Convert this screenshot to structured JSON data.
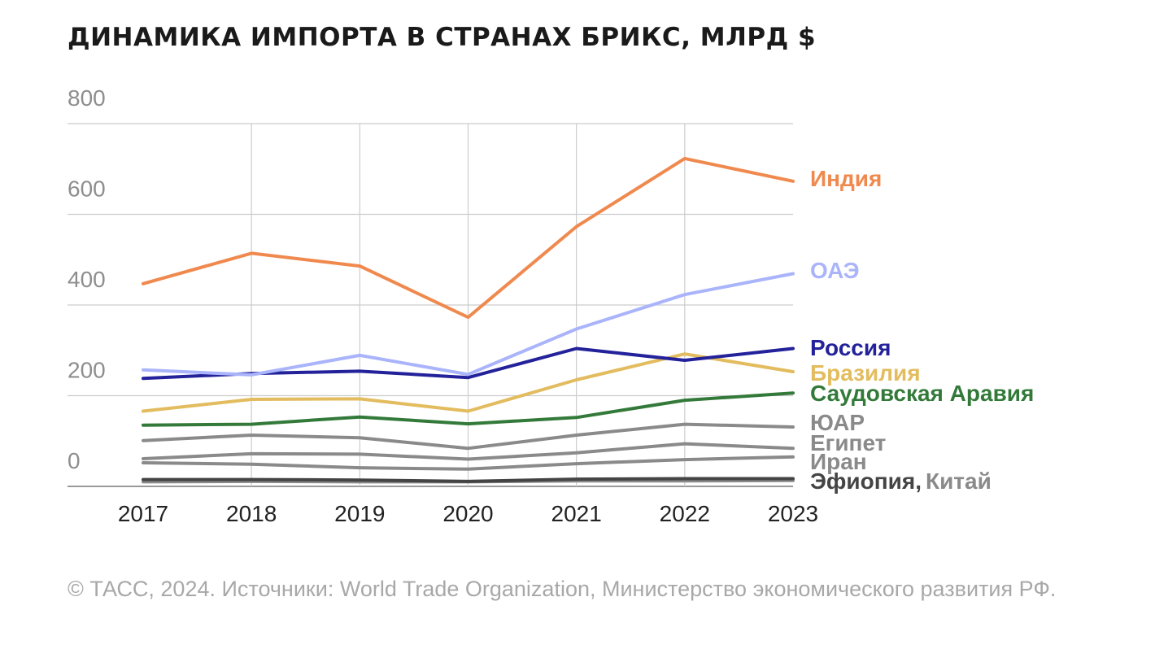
{
  "title": "ДИНАМИКА ИМПОРТА В СТРАНАХ БРИКС, МЛРД $",
  "source": "© ТАСС, 2024. Источники: World Trade Organization, Министерство экономического развития РФ.",
  "chart_data": {
    "type": "line",
    "title": "ДИНАМИКА ИМПОРТА В СТРАНАХ БРИКС, МЛРД $",
    "xlabel": "",
    "ylabel": "",
    "x": [
      "2017",
      "2018",
      "2019",
      "2020",
      "2021",
      "2022",
      "2023"
    ],
    "y_ticks": [
      0,
      200,
      400,
      600,
      800
    ],
    "ylim": [
      0,
      800
    ],
    "grid": true,
    "legend": "inline labels at right end of lines",
    "series": [
      {
        "name": "Индия",
        "color": "#f0894e",
        "values": [
          447,
          514,
          486,
          373,
          573,
          723,
          673
        ]
      },
      {
        "name": "ОАЭ",
        "color": "#a9b4fb",
        "values": [
          257,
          246,
          289,
          247,
          347,
          423,
          469
        ]
      },
      {
        "name": "Россия",
        "color": "#23229a",
        "values": [
          238,
          249,
          254,
          240,
          304,
          278,
          304
        ]
      },
      {
        "name": "Бразилия",
        "color": "#e2bc5e",
        "values": [
          166,
          192,
          193,
          166,
          235,
          292,
          253
        ]
      },
      {
        "name": "Саудовская Аравия",
        "color": "#337a3a",
        "values": [
          135,
          137,
          153,
          138,
          152,
          190,
          206
        ]
      },
      {
        "name": "ЮАР",
        "color": "#8a8a8a",
        "values": [
          101,
          113,
          107,
          84,
          113,
          137,
          131
        ]
      },
      {
        "name": "Египет",
        "color": "#8a8a8a",
        "values": [
          61,
          72,
          71,
          60,
          74,
          94,
          84
        ]
      },
      {
        "name": "Иран",
        "color": "#8a8a8a",
        "values": [
          52,
          49,
          41,
          38,
          50,
          59,
          65
        ]
      },
      {
        "name": "Эфиопия",
        "color": "#444444",
        "values": [
          15,
          15,
          14,
          11,
          16,
          17,
          17
        ]
      },
      {
        "name": "Китай",
        "color": "#8a8a8a",
        "values": [
          10,
          11,
          10,
          10,
          12,
          12,
          13
        ]
      }
    ]
  },
  "labels": {
    "india": "Индия",
    "uae": "ОАЭ",
    "russia": "Россия",
    "brazil": "Бразилия",
    "saudi": "Саудовская Аравия",
    "sa": "ЮАР",
    "egypt": "Египет",
    "iran": "Иран",
    "ethiopia": "Эфиопия,",
    "china": "Китай"
  },
  "label_colors": {
    "india": "#f0894e",
    "uae": "#a9b4fb",
    "russia": "#23229a",
    "brazil": "#e2bc5e",
    "saudi": "#337a3a",
    "sa": "#8a8a8a",
    "egypt": "#8a8a8a",
    "iran": "#8a8a8a",
    "ethiopia": "#444444",
    "china": "#8a8a8a"
  }
}
